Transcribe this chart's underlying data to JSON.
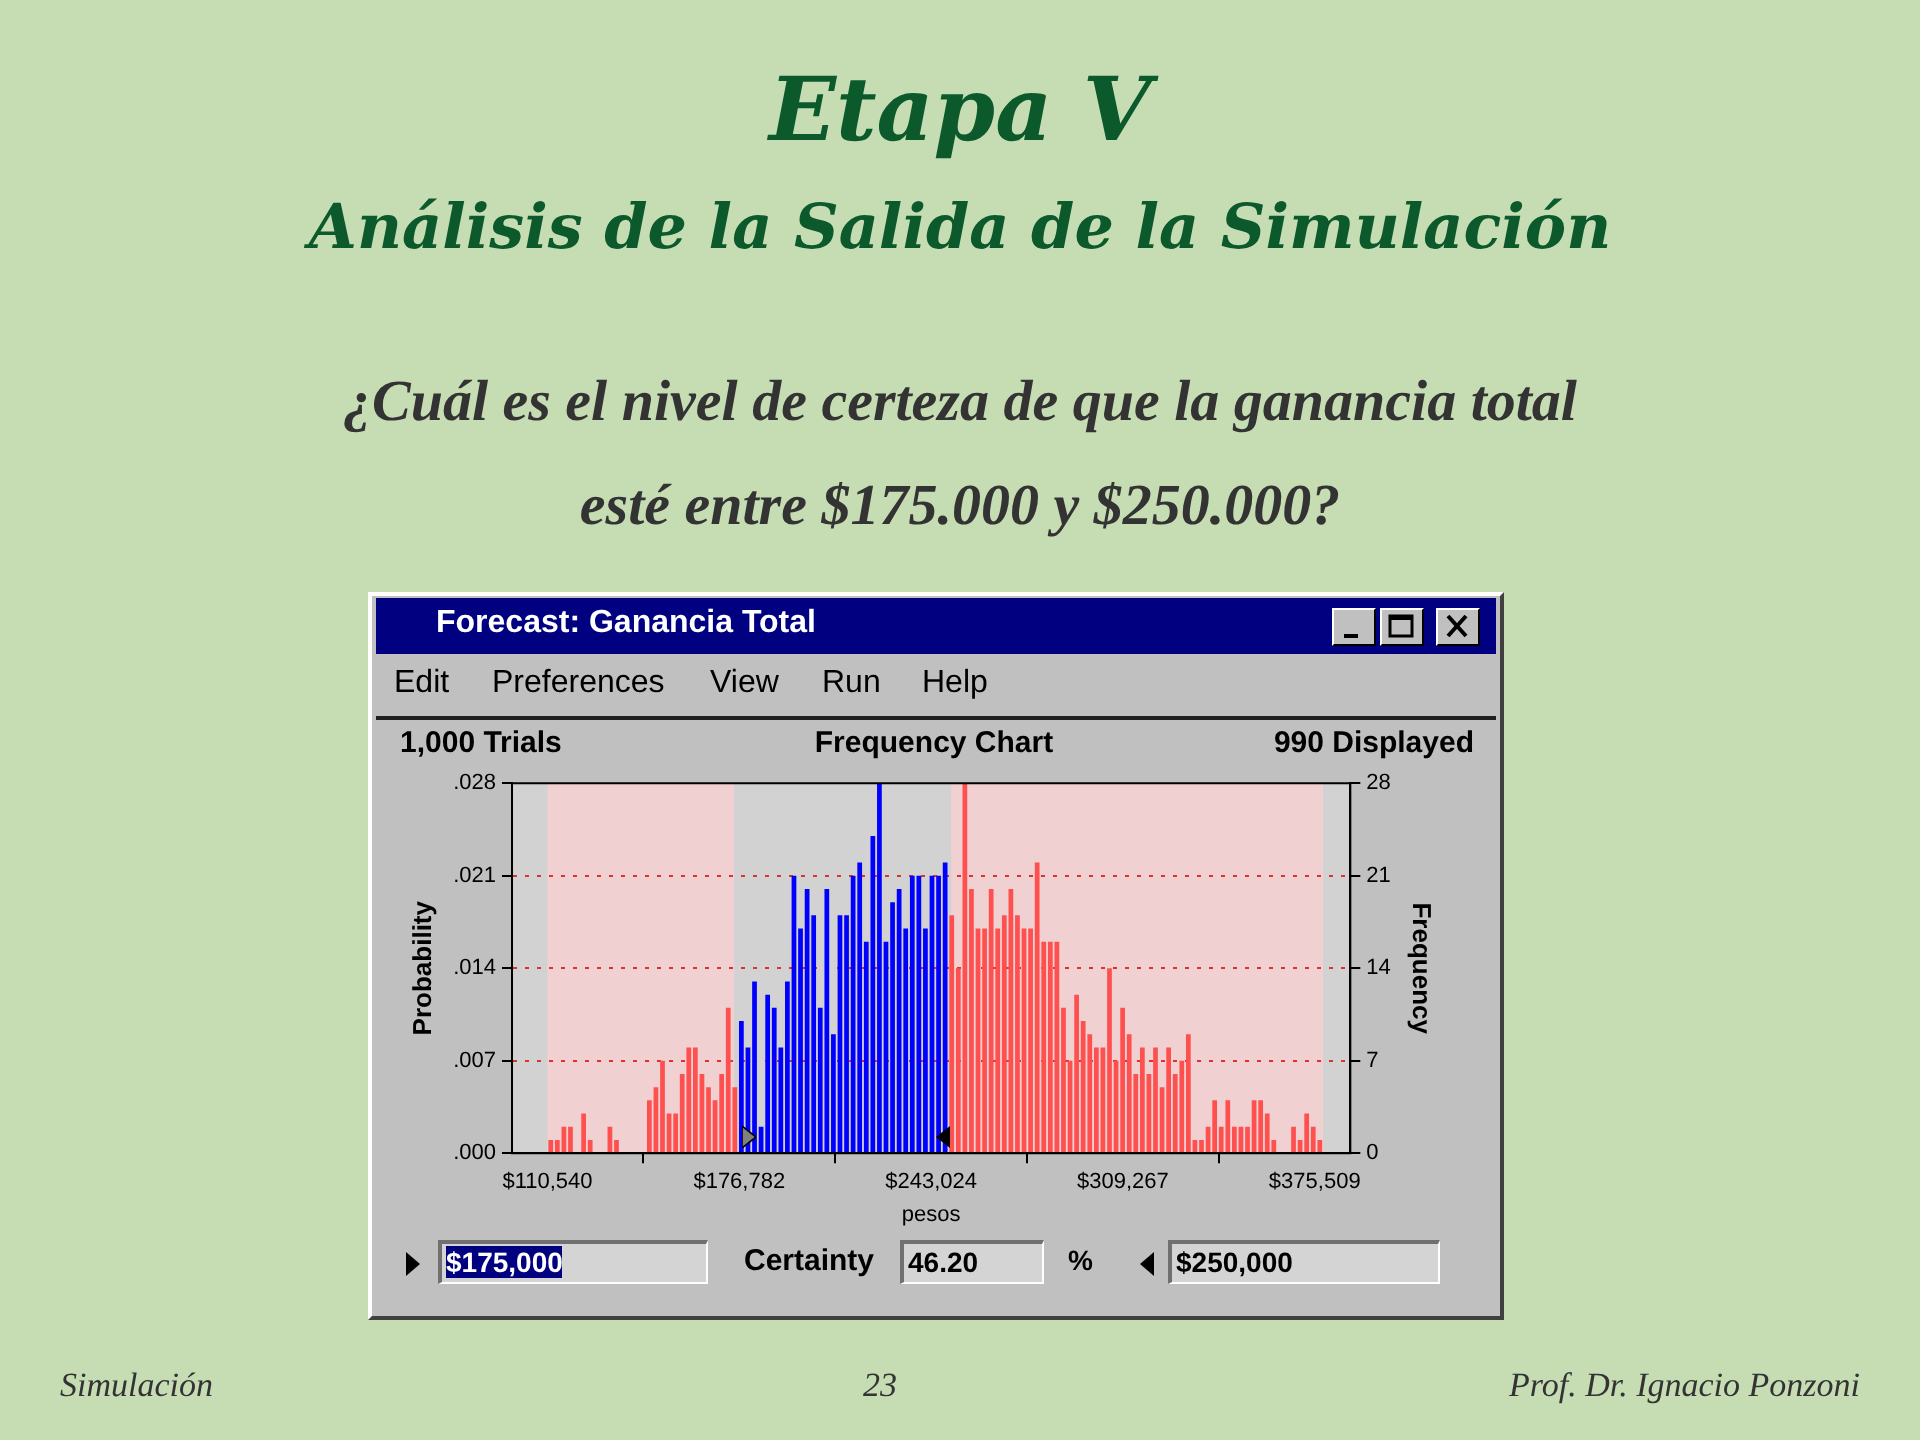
{
  "chart_data": {
    "type": "histogram",
    "title": "Etapa V",
    "subtitle": "Análisis de la Salida de la Simulación",
    "xlabel": "pesos",
    "ylabel": "Probability",
    "y2label": "Frequency",
    "bins": [
      110540,
      112810,
      115080,
      117350,
      119620,
      121890,
      124160,
      126430,
      128700,
      130970,
      133240,
      135510,
      137780,
      140050,
      142320,
      144590,
      146860,
      149130,
      151400,
      153670,
      155940,
      158210,
      160480,
      162750,
      165020,
      167290,
      169560,
      171830,
      174100,
      176370,
      178640,
      180910,
      183180,
      185450,
      187720,
      189990,
      192260,
      194530,
      196800,
      199070,
      201340,
      203610,
      205880,
      208150,
      210420,
      212690,
      214960,
      217230,
      219500,
      221770,
      224040,
      226310,
      228580,
      230850,
      233120,
      235390,
      237660,
      239930,
      242200,
      244470,
      246740,
      249010,
      251280,
      253550,
      255820,
      258090,
      260360,
      262630,
      264900,
      267170,
      269440,
      271710,
      273980,
      276250,
      278520,
      280790,
      283060,
      285330,
      287600,
      289870,
      292140,
      294410,
      296680,
      298950,
      301220,
      303490,
      305760,
      308030,
      310300,
      312570,
      314840,
      317110,
      319380,
      321650,
      323920,
      326190,
      328460,
      330730,
      333000,
      335270,
      337540,
      339810,
      342080,
      344350,
      346620,
      348890,
      351160,
      353430,
      355700,
      357970,
      360240,
      362510,
      364780,
      367050,
      369320,
      371590,
      373860,
      376130,
      378400
    ],
    "series": [
      {
        "axis": "y2",
        "values": [
          1,
          1,
          2,
          2,
          0,
          3,
          1,
          0,
          0,
          2,
          1,
          0,
          0,
          0,
          0,
          4,
          5,
          7,
          3,
          3,
          6,
          8,
          8,
          6,
          5,
          4,
          6,
          11,
          5,
          10,
          8,
          13,
          2,
          12,
          11,
          8,
          13,
          21,
          17,
          20,
          18,
          11,
          20,
          9,
          18,
          18,
          21,
          22,
          16,
          24,
          28,
          16,
          19,
          20,
          17,
          21,
          21,
          17,
          21,
          21,
          22,
          18,
          14,
          28,
          20,
          17,
          17,
          20,
          17,
          18,
          20,
          18,
          17,
          17,
          22,
          16,
          16,
          16,
          11,
          7,
          12,
          10,
          9,
          8,
          8,
          14,
          7,
          11,
          9,
          6,
          8,
          6,
          8,
          5,
          8,
          6,
          7,
          9,
          1,
          1,
          2,
          4,
          2,
          4,
          2,
          2,
          2,
          4,
          4,
          3,
          1,
          0,
          0,
          2,
          1,
          3,
          2,
          1
        ],
        "colors": [
          "#ff5050",
          "#ff5050",
          "#ff5050",
          "#ff5050",
          "#ff5050",
          "#ff5050",
          "#ff5050",
          "#ff5050",
          "#ff5050",
          "#ff5050",
          "#ff5050",
          "#ff5050",
          "#ff5050",
          "#ff5050",
          "#ff5050",
          "#ff5050",
          "#ff5050",
          "#ff5050",
          "#ff5050",
          "#ff5050",
          "#ff5050",
          "#ff5050",
          "#ff5050",
          "#ff5050",
          "#ff5050",
          "#ff5050",
          "#ff5050",
          "#ff5050",
          "#ff5050",
          "#0000ff",
          "#0000ff",
          "#0000ff",
          "#0000ff",
          "#0000ff",
          "#0000ff",
          "#0000ff",
          "#0000ff",
          "#0000ff",
          "#0000ff",
          "#0000ff",
          "#0000ff",
          "#0000ff",
          "#0000ff",
          "#0000ff",
          "#0000ff",
          "#0000ff",
          "#0000ff",
          "#0000ff",
          "#0000ff",
          "#0000ff",
          "#0000ff",
          "#0000ff",
          "#0000ff",
          "#0000ff",
          "#0000ff",
          "#0000ff",
          "#0000ff",
          "#0000ff",
          "#0000ff",
          "#0000ff",
          "#0000ff",
          "#ff5050",
          "#ff5050",
          "#ff5050",
          "#ff5050",
          "#ff5050",
          "#ff5050",
          "#ff5050",
          "#ff5050",
          "#ff5050",
          "#ff5050",
          "#ff5050",
          "#ff5050",
          "#ff5050",
          "#ff5050",
          "#ff5050",
          "#ff5050",
          "#ff5050",
          "#ff5050",
          "#ff5050",
          "#ff5050",
          "#ff5050",
          "#ff5050",
          "#ff5050",
          "#ff5050",
          "#ff5050",
          "#ff5050",
          "#ff5050",
          "#ff5050",
          "#ff5050",
          "#ff5050",
          "#ff5050",
          "#ff5050",
          "#ff5050",
          "#ff5050",
          "#ff5050",
          "#ff5050",
          "#ff5050",
          "#ff5050",
          "#ff5050",
          "#ff5050",
          "#ff5050",
          "#ff5050",
          "#ff5050",
          "#ff5050",
          "#ff5050",
          "#ff5050",
          "#ff5050",
          "#ff5050",
          "#ff5050",
          "#ff5050",
          "#ff5050",
          "#ff5050",
          "#ff5050",
          "#ff5050",
          "#ff5050",
          "#ff5050",
          "#ff5050"
        ]
      }
    ],
    "xlim": [
      98300,
      387800
    ],
    "xticks": [
      {
        "value": 110540,
        "label": "$110,540"
      },
      {
        "value": 176782,
        "label": "$176,782"
      },
      {
        "value": 243024,
        "label": "$243,024"
      },
      {
        "value": 309267,
        "label": "$309,267"
      },
      {
        "value": 375509,
        "label": "$375,509"
      }
    ],
    "ylim": [
      0,
      0.028
    ],
    "yticks": [
      {
        "value": 0,
        "label": ".000"
      },
      {
        "value": 0.007,
        "label": ".007"
      },
      {
        "value": 0.014,
        "label": ".014"
      },
      {
        "value": 0.021,
        "label": ".021"
      },
      {
        "value": 0.028,
        "label": ".028"
      }
    ],
    "y2lim": [
      0,
      28
    ],
    "y2ticks": [
      0,
      7,
      14,
      21,
      28
    ],
    "grid": "y",
    "bands": [
      {
        "axis": "x",
        "from": 110540,
        "to": 175000,
        "color": "#f0d0d0"
      },
      {
        "axis": "x",
        "from": 250000,
        "to": 378400,
        "color": "#f0d0d0"
      }
    ],
    "annotations": [
      "¿Cuál es el nivel de certeza de que la ganancia total esté entre $175.000 y $250.000?",
      "Forecast: Ganancia Total",
      "Edit",
      "Preferences",
      "View",
      "Run",
      "Help",
      "1,000 Trials",
      "Frequency Chart",
      "990 Displayed",
      "$175,000",
      "Certainty",
      "46.20",
      "%",
      "$250,000",
      "Simulación",
      "23",
      "Prof. Dr. Ignacio Ponzoni"
    ]
  }
}
